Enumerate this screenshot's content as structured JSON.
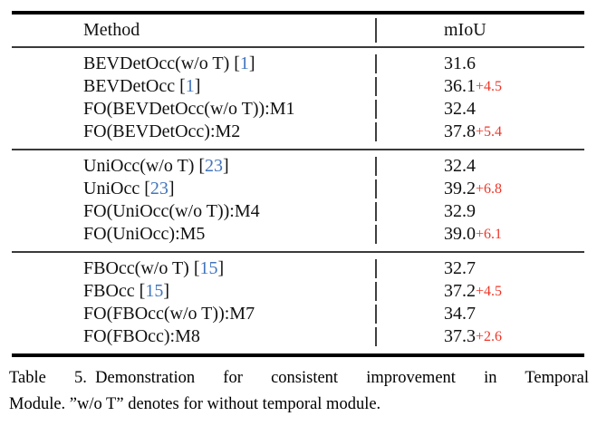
{
  "table": {
    "header": {
      "method": "Method",
      "metric": "mIoU"
    },
    "groups": [
      {
        "rows": [
          {
            "method": "BEVDetOcc(w/o T) ",
            "cite_open": "[",
            "cite": "1",
            "cite_close": "]",
            "miou": "31.6"
          },
          {
            "method": "BEVDetOcc ",
            "cite_open": "[",
            "cite": "1",
            "cite_close": "]",
            "miou": "36.1",
            "delta": "+4.5"
          },
          {
            "method": "FO(BEVDetOcc(w/o T)):M1",
            "miou": "32.4"
          },
          {
            "method": "FO(BEVDetOcc):M2",
            "miou": "37.8",
            "delta": "+5.4"
          }
        ]
      },
      {
        "rows": [
          {
            "method": "UniOcc(w/o T) ",
            "cite_open": "[",
            "cite": "23",
            "cite_close": "]",
            "miou": "32.4"
          },
          {
            "method": "UniOcc ",
            "cite_open": "[",
            "cite": "23",
            "cite_close": "]",
            "miou": "39.2",
            "delta": "+6.8"
          },
          {
            "method": "FO(UniOcc(w/o T)):M4",
            "miou": "32.9"
          },
          {
            "method": "FO(UniOcc):M5",
            "miou": "39.0",
            "delta": "+6.1"
          }
        ]
      },
      {
        "rows": [
          {
            "method": "FBOcc(w/o T) ",
            "cite_open": "[",
            "cite": "15",
            "cite_close": "]",
            "miou": "32.7"
          },
          {
            "method": "FBOcc ",
            "cite_open": "[",
            "cite": "15",
            "cite_close": "]",
            "miou": "37.2",
            "delta": "+4.5"
          },
          {
            "method": "FO(FBOcc(w/o T)):M7",
            "miou": "34.7"
          },
          {
            "method": "FO(FBOcc):M8",
            "miou": "37.3",
            "delta": "+2.6"
          }
        ]
      }
    ]
  },
  "caption": {
    "line1": "Table 5. Demonstration for consistent improvement in Temporal",
    "line2": "Module. ”w/o T” denotes for without temporal module."
  },
  "colors": {
    "citation_blue": "#4175bd",
    "delta_red": "#ee3528",
    "rule_black": "#000000"
  }
}
